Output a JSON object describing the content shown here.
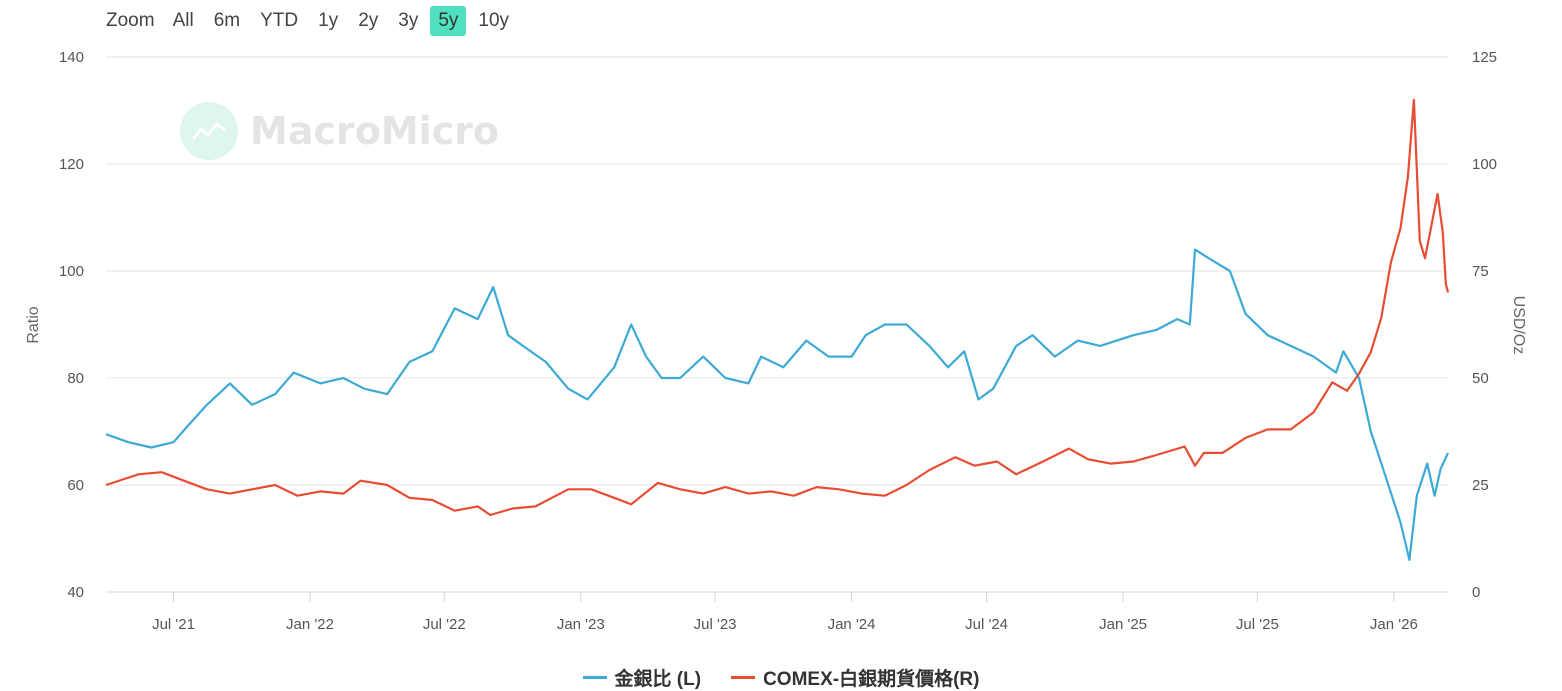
{
  "toolbar": {
    "zoom_label": "Zoom",
    "buttons": [
      "All",
      "6m",
      "YTD",
      "1y",
      "2y",
      "3y",
      "5y",
      "10y"
    ],
    "active": "5y"
  },
  "watermark": {
    "text": "MacroMicro"
  },
  "chart_data": {
    "type": "line",
    "title": "",
    "ylabel_left": "Ratio",
    "ylabel_right": "USD/Oz",
    "ylim_left": [
      40,
      140
    ],
    "ylim_right": [
      0,
      125
    ],
    "yticks_left": [
      "40",
      "60",
      "80",
      "100",
      "120",
      "140"
    ],
    "yticks_right": [
      "0",
      "25",
      "50",
      "75",
      "100",
      "125"
    ],
    "x_ticks": [
      "Jul '21",
      "Jan '22",
      "Jul '22",
      "Jan '23",
      "Jul '23",
      "Jan '24",
      "Jul '24",
      "Jan '25",
      "Jul '25",
      "Jan '26"
    ],
    "x_range": [
      "2021-04-01",
      "2026-03-15"
    ],
    "grid": true,
    "legend_position": "bottom-center",
    "series": [
      {
        "name": "金銀比 (L)",
        "axis": "left",
        "color": "#3daad6",
        "points": [
          [
            "2021-04-01",
            69.5
          ],
          [
            "2021-05-01",
            68
          ],
          [
            "2021-06-01",
            67
          ],
          [
            "2021-07-01",
            68
          ],
          [
            "2021-07-20",
            71
          ],
          [
            "2021-08-15",
            75
          ],
          [
            "2021-09-15",
            79
          ],
          [
            "2021-10-15",
            75
          ],
          [
            "2021-11-15",
            77
          ],
          [
            "2021-12-10",
            81
          ],
          [
            "2022-01-15",
            79
          ],
          [
            "2022-02-15",
            80
          ],
          [
            "2022-03-15",
            78
          ],
          [
            "2022-04-15",
            77
          ],
          [
            "2022-05-15",
            83
          ],
          [
            "2022-06-15",
            85
          ],
          [
            "2022-07-15",
            93
          ],
          [
            "2022-08-15",
            91
          ],
          [
            "2022-09-05",
            97
          ],
          [
            "2022-09-25",
            88
          ],
          [
            "2022-10-15",
            86
          ],
          [
            "2022-11-15",
            83
          ],
          [
            "2022-12-15",
            78
          ],
          [
            "2023-01-10",
            76
          ],
          [
            "2023-02-15",
            82
          ],
          [
            "2023-03-10",
            90
          ],
          [
            "2023-03-30",
            84
          ],
          [
            "2023-04-20",
            80
          ],
          [
            "2023-05-15",
            80
          ],
          [
            "2023-06-15",
            84
          ],
          [
            "2023-07-15",
            80
          ],
          [
            "2023-08-15",
            79
          ],
          [
            "2023-09-01",
            84
          ],
          [
            "2023-10-01",
            82
          ],
          [
            "2023-11-01",
            87
          ],
          [
            "2023-12-01",
            84
          ],
          [
            "2024-01-01",
            84
          ],
          [
            "2024-01-20",
            88
          ],
          [
            "2024-02-15",
            90
          ],
          [
            "2024-03-15",
            90
          ],
          [
            "2024-04-15",
            86
          ],
          [
            "2024-05-10",
            82
          ],
          [
            "2024-06-01",
            85
          ],
          [
            "2024-06-20",
            76
          ],
          [
            "2024-07-10",
            78
          ],
          [
            "2024-08-10",
            86
          ],
          [
            "2024-09-01",
            88
          ],
          [
            "2024-10-01",
            84
          ],
          [
            "2024-11-01",
            87
          ],
          [
            "2024-12-01",
            86
          ],
          [
            "2025-01-15",
            88
          ],
          [
            "2025-02-15",
            89
          ],
          [
            "2025-03-15",
            91
          ],
          [
            "2025-04-01",
            90
          ],
          [
            "2025-04-08",
            104
          ],
          [
            "2025-05-01",
            102
          ],
          [
            "2025-05-25",
            100
          ],
          [
            "2025-06-15",
            92
          ],
          [
            "2025-07-15",
            88
          ],
          [
            "2025-08-15",
            86
          ],
          [
            "2025-09-15",
            84
          ],
          [
            "2025-10-15",
            81
          ],
          [
            "2025-10-25",
            85
          ],
          [
            "2025-11-15",
            80
          ],
          [
            "2025-12-01",
            70
          ],
          [
            "2025-12-20",
            62
          ],
          [
            "2026-01-10",
            53
          ],
          [
            "2026-01-22",
            46
          ],
          [
            "2026-02-01",
            58
          ],
          [
            "2026-02-15",
            64
          ],
          [
            "2026-02-25",
            58
          ],
          [
            "2026-03-05",
            63
          ],
          [
            "2026-03-15",
            66
          ]
        ]
      },
      {
        "name": "COMEX-白銀期貨價格(R)",
        "axis": "right",
        "color": "#e84d33",
        "points": [
          [
            "2021-04-01",
            25
          ],
          [
            "2021-05-15",
            27.5
          ],
          [
            "2021-06-15",
            28
          ],
          [
            "2021-07-15",
            26
          ],
          [
            "2021-08-15",
            24
          ],
          [
            "2021-09-15",
            23
          ],
          [
            "2021-10-15",
            24
          ],
          [
            "2021-11-15",
            25
          ],
          [
            "2021-12-15",
            22.5
          ],
          [
            "2022-01-15",
            23.5
          ],
          [
            "2022-02-15",
            23
          ],
          [
            "2022-03-10",
            26
          ],
          [
            "2022-04-15",
            25
          ],
          [
            "2022-05-15",
            22
          ],
          [
            "2022-06-15",
            21.5
          ],
          [
            "2022-07-15",
            19
          ],
          [
            "2022-08-15",
            20
          ],
          [
            "2022-09-01",
            18
          ],
          [
            "2022-10-01",
            19.5
          ],
          [
            "2022-11-01",
            20
          ],
          [
            "2022-12-15",
            24
          ],
          [
            "2023-01-15",
            24
          ],
          [
            "2023-02-15",
            22
          ],
          [
            "2023-03-10",
            20.5
          ],
          [
            "2023-04-15",
            25.5
          ],
          [
            "2023-05-15",
            24
          ],
          [
            "2023-06-15",
            23
          ],
          [
            "2023-07-15",
            24.5
          ],
          [
            "2023-08-15",
            23
          ],
          [
            "2023-09-15",
            23.5
          ],
          [
            "2023-10-15",
            22.5
          ],
          [
            "2023-11-15",
            24.5
          ],
          [
            "2023-12-15",
            24
          ],
          [
            "2024-01-15",
            23
          ],
          [
            "2024-02-15",
            22.5
          ],
          [
            "2024-03-15",
            25
          ],
          [
            "2024-04-15",
            28.5
          ],
          [
            "2024-05-20",
            31.5
          ],
          [
            "2024-06-15",
            29.5
          ],
          [
            "2024-07-15",
            30.5
          ],
          [
            "2024-08-10",
            27.5
          ],
          [
            "2024-09-15",
            30.5
          ],
          [
            "2024-10-20",
            33.5
          ],
          [
            "2024-11-15",
            31
          ],
          [
            "2024-12-15",
            30
          ],
          [
            "2025-01-15",
            30.5
          ],
          [
            "2025-02-15",
            32
          ],
          [
            "2025-03-25",
            34
          ],
          [
            "2025-04-08",
            29.5
          ],
          [
            "2025-04-20",
            32.5
          ],
          [
            "2025-05-15",
            32.5
          ],
          [
            "2025-06-15",
            36
          ],
          [
            "2025-07-15",
            38
          ],
          [
            "2025-08-15",
            38
          ],
          [
            "2025-09-15",
            42
          ],
          [
            "2025-10-10",
            49
          ],
          [
            "2025-10-30",
            47
          ],
          [
            "2025-11-15",
            51
          ],
          [
            "2025-12-01",
            56
          ],
          [
            "2025-12-15",
            64
          ],
          [
            "2025-12-28",
            77
          ],
          [
            "2026-01-10",
            85
          ],
          [
            "2026-01-20",
            97
          ],
          [
            "2026-01-28",
            115
          ],
          [
            "2026-02-05",
            82
          ],
          [
            "2026-02-12",
            78
          ],
          [
            "2026-02-20",
            85
          ],
          [
            "2026-03-01",
            93
          ],
          [
            "2026-03-08",
            84
          ],
          [
            "2026-03-12",
            72
          ],
          [
            "2026-03-15",
            70
          ]
        ]
      }
    ]
  }
}
